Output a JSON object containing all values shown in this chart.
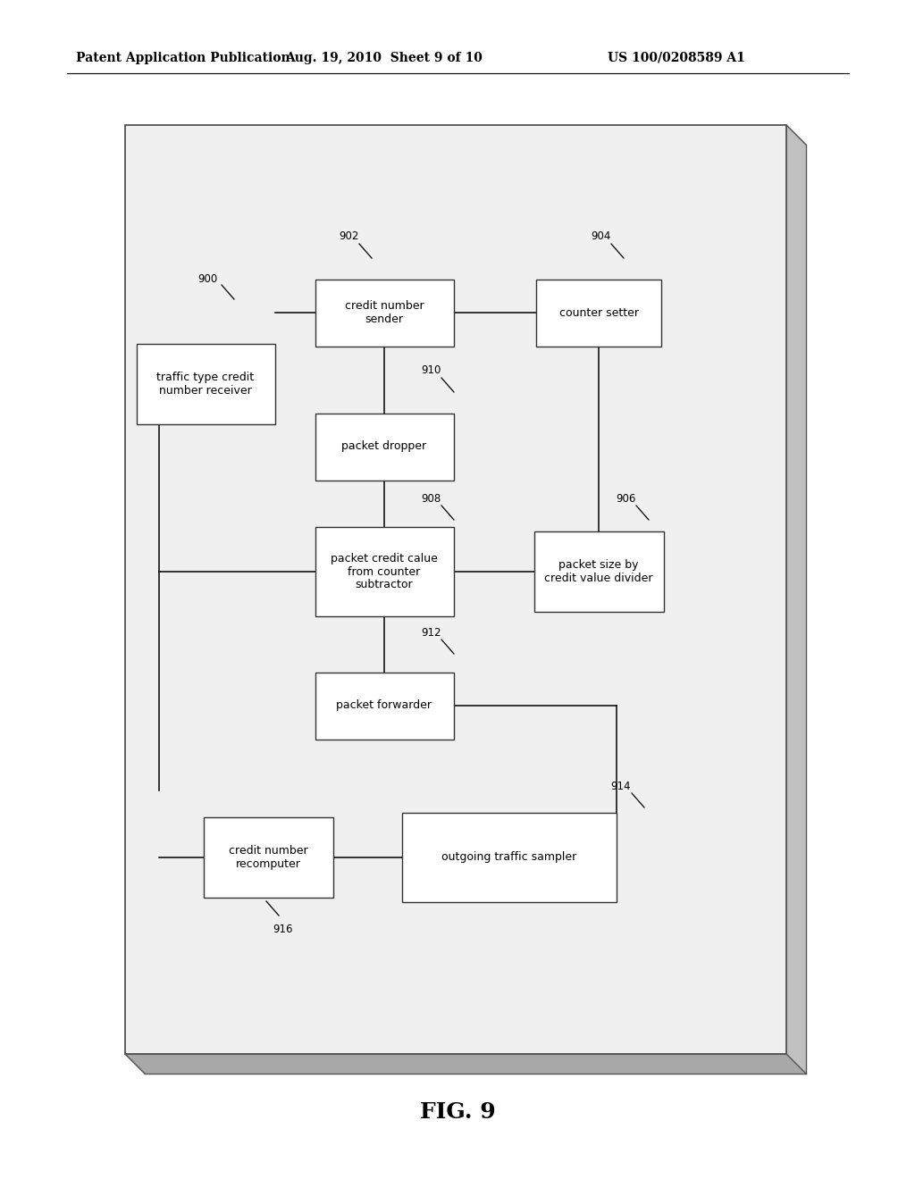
{
  "header_left": "Patent Application Publication",
  "header_mid": "Aug. 19, 2010  Sheet 9 of 10",
  "header_right": "US 100/0208589 A1",
  "fig_label": "FIG. 9",
  "bg_color": "#ffffff",
  "frame_color": "#cccccc",
  "shadow_color": "#aaaaaa",
  "box_edge": "#333333",
  "lw": 1.0
}
